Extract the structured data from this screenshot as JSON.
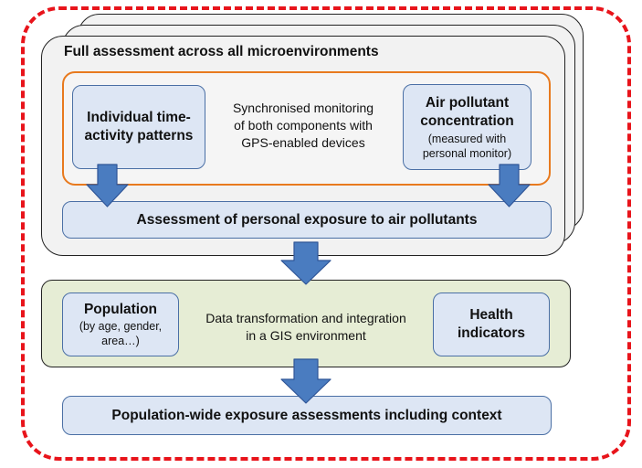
{
  "full_assessment": {
    "title": "Full assessment across all microenvironments",
    "time_activity": "Individual time-activity patterns",
    "sync_text": [
      "Synchronised monitoring",
      "of both components with",
      "GPS-enabled devices"
    ],
    "air_pollutant_title": "Air pollutant concentration",
    "air_pollutant_note": "(measured with personal monitor)",
    "personal_exposure": "Assessment of personal exposure to air pollutants"
  },
  "integration": {
    "population_title": "Population",
    "population_note": "(by age, gender, area…)",
    "transform_text": [
      "Data transformation and integration",
      "in a GIS environment"
    ],
    "health": "Health indicators"
  },
  "result": {
    "label": "Population-wide exposure assessments including context"
  },
  "colors": {
    "dashed_frame": "#e8141b",
    "orange_frame": "#e87a1e",
    "blue_fill": "#dde6f4",
    "blue_border": "#4a6fa5",
    "green_fill": "#e6edd5",
    "arrow": "#4a7cc0"
  }
}
